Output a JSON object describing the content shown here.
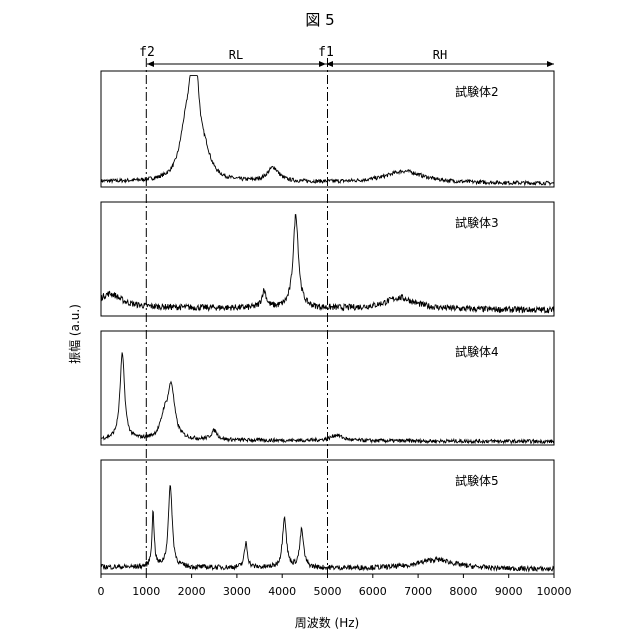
{
  "figure_label": "図 5",
  "regions": {
    "f2_label": "f2",
    "f1_label": "f1",
    "rl_label": "RL",
    "rh_label": "RH",
    "f2_hz": 1000,
    "f1_hz": 5000
  },
  "chart_data": {
    "type": "line",
    "xlabel": "周波数 (Hz)",
    "ylabel": "振幅 (a.u.)",
    "xlim": [
      0,
      10000
    ],
    "xticks": [
      0,
      1000,
      2000,
      3000,
      4000,
      5000,
      6000,
      7000,
      8000,
      9000,
      10000
    ],
    "ylim": [
      0,
      1
    ],
    "grid": false,
    "panels": [
      {
        "name": "試験体2",
        "baseline": 0.03,
        "peaks": [
          {
            "hz": 2000,
            "amp": 0.55,
            "width": 120
          },
          {
            "hz": 2100,
            "amp": 0.6,
            "width": 90
          },
          {
            "hz": 1850,
            "amp": 0.3,
            "width": 150
          },
          {
            "hz": 2300,
            "amp": 0.18,
            "width": 150
          },
          {
            "hz": 3800,
            "amp": 0.12,
            "width": 150
          },
          {
            "hz": 6700,
            "amp": 0.1,
            "width": 500
          }
        ]
      },
      {
        "name": "試験体3",
        "baseline": 0.05,
        "peaks": [
          {
            "hz": 200,
            "amp": 0.12,
            "width": 300
          },
          {
            "hz": 3600,
            "amp": 0.15,
            "width": 60
          },
          {
            "hz": 4300,
            "amp": 0.82,
            "width": 70
          },
          {
            "hz": 6600,
            "amp": 0.1,
            "width": 400
          }
        ]
      },
      {
        "name": "試験体4",
        "baseline": 0.03,
        "peaks": [
          {
            "hz": 470,
            "amp": 0.75,
            "width": 60
          },
          {
            "hz": 1550,
            "amp": 0.45,
            "width": 90
          },
          {
            "hz": 1400,
            "amp": 0.18,
            "width": 100
          },
          {
            "hz": 2500,
            "amp": 0.08,
            "width": 80
          },
          {
            "hz": 5200,
            "amp": 0.05,
            "width": 150
          }
        ]
      },
      {
        "name": "試験体5",
        "baseline": 0.04,
        "peaks": [
          {
            "hz": 1150,
            "amp": 0.48,
            "width": 30
          },
          {
            "hz": 1530,
            "amp": 0.72,
            "width": 50
          },
          {
            "hz": 3200,
            "amp": 0.22,
            "width": 40
          },
          {
            "hz": 4050,
            "amp": 0.45,
            "width": 50
          },
          {
            "hz": 4430,
            "amp": 0.33,
            "width": 50
          },
          {
            "hz": 7400,
            "amp": 0.08,
            "width": 500
          }
        ]
      }
    ]
  }
}
